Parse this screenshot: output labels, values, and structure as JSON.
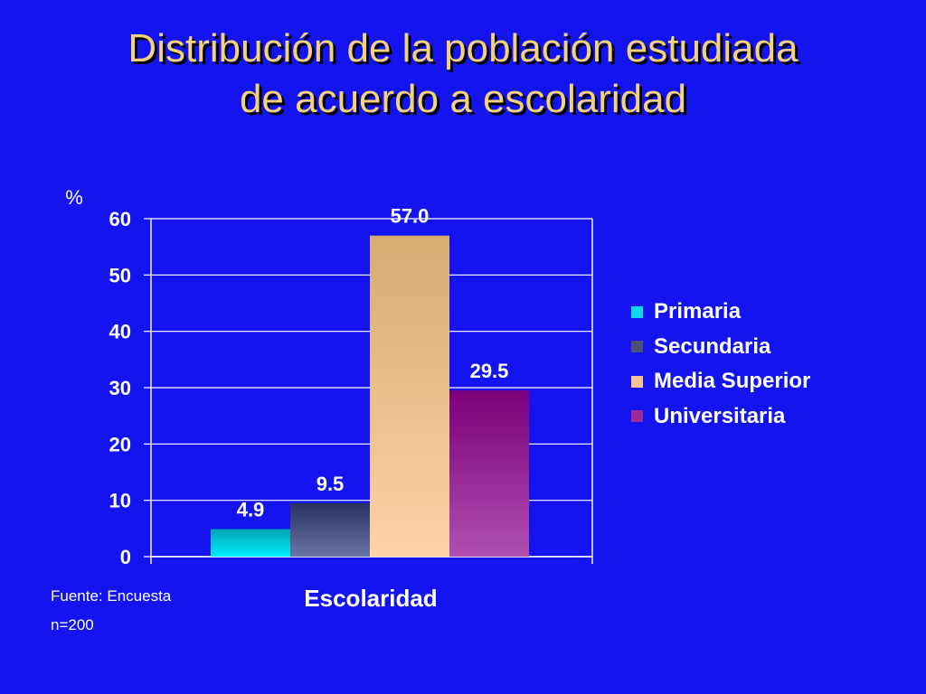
{
  "slide": {
    "title_line1": "Distribución de la población estudiada",
    "title_line2": "de acuerdo a escolaridad",
    "footnote_source": "Fuente: Encuesta",
    "footnote_n": "n=200"
  },
  "chart_data": {
    "type": "bar",
    "categories": [
      "Primaria",
      "Secundaria",
      "Media Superior",
      "Universitaria"
    ],
    "values": [
      4.9,
      9.5,
      57.0,
      29.5
    ],
    "value_labels": [
      "4.9",
      "9.5",
      "57.0",
      "29.5"
    ],
    "xlabel": "Escolaridad",
    "ylabel": "%",
    "ylim": [
      0,
      60
    ],
    "yticks": [
      0,
      10,
      20,
      30,
      40,
      50,
      60
    ],
    "grid": true,
    "legend": "right",
    "colors": [
      {
        "top": "#00a2b4",
        "bottom": "#00f0ff"
      },
      {
        "top": "#2a3060",
        "bottom": "#6a76a8"
      },
      {
        "top": "#d8aa74",
        "bottom": "#ffd2a8"
      },
      {
        "top": "#7a007a",
        "bottom": "#b050b0"
      }
    ],
    "legend_swatch_colors": [
      "#10d8e8",
      "#4a5278",
      "#f2c396",
      "#9a2c9a"
    ]
  }
}
